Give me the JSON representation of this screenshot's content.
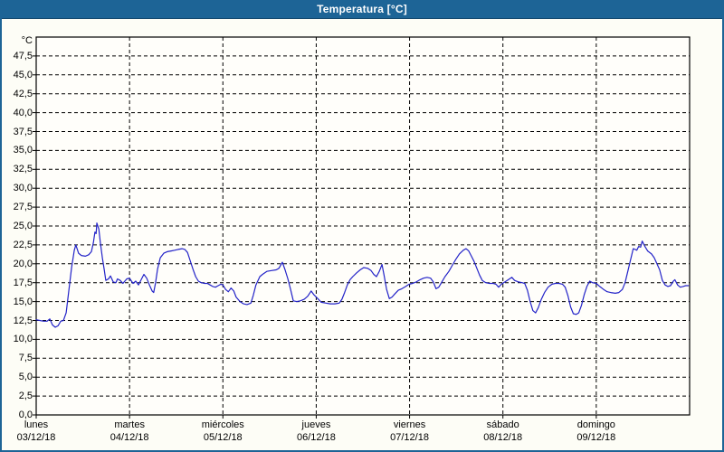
{
  "window": {
    "title": "Temperatura [°C]"
  },
  "colors": {
    "titlebar": "#1d6496",
    "title_text": "#ffffff",
    "page_border": "#1d6496",
    "background": "#fdfdf6",
    "plot_background": "#fffefa",
    "grid": "#000000",
    "axis": "#000000",
    "tick_text": "#000000",
    "line": "#2323c8"
  },
  "chart_data": {
    "type": "line",
    "title": "Temperatura [°C]",
    "ylabel": "°C",
    "xlabel": "",
    "ylim": [
      0,
      50
    ],
    "ytick_step": 2.5,
    "grid": "dashed",
    "legend": "none",
    "x_range_hours": [
      0,
      168
    ],
    "yticks": [
      {
        "value": 47.5,
        "label": "47,5"
      },
      {
        "value": 45.0,
        "label": "45,0"
      },
      {
        "value": 42.5,
        "label": "42,5"
      },
      {
        "value": 40.0,
        "label": "40,0"
      },
      {
        "value": 37.5,
        "label": "37,5"
      },
      {
        "value": 35.0,
        "label": "35,0"
      },
      {
        "value": 32.5,
        "label": "32,5"
      },
      {
        "value": 30.0,
        "label": "30,0"
      },
      {
        "value": 27.5,
        "label": "27,5"
      },
      {
        "value": 25.0,
        "label": "25,0"
      },
      {
        "value": 22.5,
        "label": "22,5"
      },
      {
        "value": 20.0,
        "label": "20,0"
      },
      {
        "value": 17.5,
        "label": "17,5"
      },
      {
        "value": 15.0,
        "label": "15,0"
      },
      {
        "value": 12.5,
        "label": "12,5"
      },
      {
        "value": 10.0,
        "label": "10,0"
      },
      {
        "value": 7.5,
        "label": "7,5"
      },
      {
        "value": 5.0,
        "label": "5,0"
      },
      {
        "value": 2.5,
        "label": "2,5"
      },
      {
        "value": 0.0,
        "label": "0,0"
      }
    ],
    "x_days": [
      {
        "name": "lunes",
        "date": "03/12/18"
      },
      {
        "name": "martes",
        "date": "04/12/18"
      },
      {
        "name": "miércoles",
        "date": "05/12/18"
      },
      {
        "name": "jueves",
        "date": "06/12/18"
      },
      {
        "name": "viernes",
        "date": "07/12/18"
      },
      {
        "name": "sábado",
        "date": "08/12/18"
      },
      {
        "name": "domingo",
        "date": "09/12/18"
      }
    ],
    "series": [
      {
        "name": "Temperatura",
        "color": "#2323c8",
        "points": [
          [
            0,
            12.6
          ],
          [
            0.9,
            12.5
          ],
          [
            1.9,
            12.4
          ],
          [
            2.8,
            12.4
          ],
          [
            3.5,
            12.7
          ],
          [
            4.2,
            11.9
          ],
          [
            4.9,
            11.6
          ],
          [
            5.6,
            11.8
          ],
          [
            6.3,
            12.4
          ],
          [
            7,
            12.5
          ],
          [
            7.7,
            13.5
          ],
          [
            8.4,
            16.5
          ],
          [
            9.1,
            19.5
          ],
          [
            9.8,
            21.8
          ],
          [
            10.2,
            22.5
          ],
          [
            10.9,
            21.4
          ],
          [
            11.6,
            21.1
          ],
          [
            12.6,
            21
          ],
          [
            13.5,
            21.2
          ],
          [
            14.2,
            21.6
          ],
          [
            14.7,
            22.8
          ],
          [
            15.1,
            24.2
          ],
          [
            15.4,
            24
          ],
          [
            15.6,
            25.4
          ],
          [
            16.1,
            24.6
          ],
          [
            16.5,
            22.8
          ],
          [
            17,
            20.8
          ],
          [
            17.5,
            19.2
          ],
          [
            17.9,
            17.8
          ],
          [
            18.6,
            18
          ],
          [
            19.1,
            18.4
          ],
          [
            19.8,
            17.6
          ],
          [
            20.5,
            17.5
          ],
          [
            20.9,
            18
          ],
          [
            21.6,
            17.8
          ],
          [
            22.3,
            17.4
          ],
          [
            23.3,
            18
          ],
          [
            24,
            18.1
          ],
          [
            24.9,
            17.4
          ],
          [
            25.6,
            17.7
          ],
          [
            26.3,
            17.2
          ],
          [
            27,
            17.9
          ],
          [
            27.7,
            18.6
          ],
          [
            28.4,
            18.1
          ],
          [
            29.1,
            17.2
          ],
          [
            29.8,
            16.4
          ],
          [
            30.2,
            16.2
          ],
          [
            30.7,
            17.5
          ],
          [
            31.2,
            19.3
          ],
          [
            31.9,
            20.8
          ],
          [
            32.8,
            21.4
          ],
          [
            33.7,
            21.6
          ],
          [
            34.7,
            21.7
          ],
          [
            35.6,
            21.8
          ],
          [
            36.5,
            21.9
          ],
          [
            37.5,
            22
          ],
          [
            38.2,
            21.9
          ],
          [
            38.9,
            21.5
          ],
          [
            39.6,
            20.4
          ],
          [
            40.3,
            19.3
          ],
          [
            41,
            18.3
          ],
          [
            41.7,
            17.7
          ],
          [
            42.4,
            17.5
          ],
          [
            43.3,
            17.4
          ],
          [
            44,
            17.4
          ],
          [
            44.7,
            17.2
          ],
          [
            45.4,
            17
          ],
          [
            46.1,
            16.9
          ],
          [
            46.8,
            17.1
          ],
          [
            47.5,
            17.3
          ],
          [
            48,
            17.2
          ],
          [
            48.7,
            16.6
          ],
          [
            49.4,
            16.3
          ],
          [
            50.1,
            16.8
          ],
          [
            50.8,
            16.4
          ],
          [
            51.4,
            15.6
          ],
          [
            52.4,
            15
          ],
          [
            53.3,
            14.7
          ],
          [
            54.2,
            14.6
          ],
          [
            55.2,
            14.8
          ],
          [
            55.8,
            15.8
          ],
          [
            56.5,
            17.2
          ],
          [
            57.5,
            18.3
          ],
          [
            58.2,
            18.6
          ],
          [
            59.3,
            19
          ],
          [
            60.5,
            19.1
          ],
          [
            61.7,
            19.2
          ],
          [
            62.4,
            19.4
          ],
          [
            63.3,
            20.2
          ],
          [
            64,
            19.2
          ],
          [
            64.7,
            18
          ],
          [
            65.4,
            16.6
          ],
          [
            66.1,
            15.1
          ],
          [
            67,
            15
          ],
          [
            67.9,
            15.1
          ],
          [
            68.9,
            15.3
          ],
          [
            69.8,
            15.7
          ],
          [
            70.7,
            16.4
          ],
          [
            71.4,
            15.9
          ],
          [
            72.4,
            15.4
          ],
          [
            73.3,
            14.9
          ],
          [
            74.5,
            14.8
          ],
          [
            75.6,
            14.7
          ],
          [
            76.8,
            14.7
          ],
          [
            77.9,
            14.8
          ],
          [
            78.6,
            15.3
          ],
          [
            79.3,
            16.2
          ],
          [
            80,
            17.2
          ],
          [
            80.7,
            17.9
          ],
          [
            81.4,
            18.3
          ],
          [
            82.4,
            18.8
          ],
          [
            83.3,
            19.2
          ],
          [
            84.2,
            19.5
          ],
          [
            85.2,
            19.4
          ],
          [
            86.1,
            19.1
          ],
          [
            86.8,
            18.6
          ],
          [
            87.5,
            18.3
          ],
          [
            88.2,
            19
          ],
          [
            88.9,
            19.9
          ],
          [
            89.4,
            18.6
          ],
          [
            90.1,
            16.6
          ],
          [
            90.8,
            15.4
          ],
          [
            91.5,
            15.6
          ],
          [
            92.2,
            16
          ],
          [
            93.1,
            16.5
          ],
          [
            94,
            16.7
          ],
          [
            95,
            17
          ],
          [
            95.9,
            17.3
          ],
          [
            96.8,
            17.4
          ],
          [
            97.7,
            17.6
          ],
          [
            98.7,
            17.9
          ],
          [
            99.6,
            18.1
          ],
          [
            100.5,
            18.2
          ],
          [
            101.4,
            18.1
          ],
          [
            102.1,
            17.6
          ],
          [
            102.8,
            16.7
          ],
          [
            103.5,
            16.9
          ],
          [
            104.2,
            17.5
          ],
          [
            105.1,
            18.3
          ],
          [
            106.1,
            19
          ],
          [
            107,
            19.8
          ],
          [
            107.9,
            20.6
          ],
          [
            108.8,
            21.3
          ],
          [
            109.8,
            21.8
          ],
          [
            110.5,
            22
          ],
          [
            111.2,
            21.7
          ],
          [
            111.9,
            21
          ],
          [
            112.6,
            20.3
          ],
          [
            113.3,
            19.4
          ],
          [
            114,
            18.5
          ],
          [
            114.7,
            17.8
          ],
          [
            115.6,
            17.5
          ],
          [
            116.5,
            17.4
          ],
          [
            117.5,
            17.4
          ],
          [
            118.2,
            17.3
          ],
          [
            118.9,
            16.9
          ],
          [
            119.6,
            17.3
          ],
          [
            120.5,
            17.6
          ],
          [
            121.4,
            17.9
          ],
          [
            122.3,
            18.2
          ],
          [
            123,
            17.8
          ],
          [
            124,
            17.6
          ],
          [
            124.9,
            17.5
          ],
          [
            125.6,
            17.4
          ],
          [
            126.3,
            16.5
          ],
          [
            127,
            15
          ],
          [
            127.7,
            13.8
          ],
          [
            128.4,
            13.5
          ],
          [
            129.1,
            14.2
          ],
          [
            129.8,
            15.2
          ],
          [
            130.7,
            16.2
          ],
          [
            131.6,
            16.9
          ],
          [
            132.6,
            17.3
          ],
          [
            133.5,
            17.4
          ],
          [
            134.4,
            17.4
          ],
          [
            135.3,
            17.3
          ],
          [
            136,
            16.9
          ],
          [
            136.7,
            15.8
          ],
          [
            137.4,
            14.3
          ],
          [
            138.1,
            13.4
          ],
          [
            138.8,
            13.3
          ],
          [
            139.5,
            13.5
          ],
          [
            140.2,
            14.5
          ],
          [
            140.9,
            15.9
          ],
          [
            141.6,
            17
          ],
          [
            142.3,
            17.7
          ],
          [
            143,
            17.5
          ],
          [
            144,
            17.4
          ],
          [
            144.9,
            17
          ],
          [
            145.9,
            16.6
          ],
          [
            146.8,
            16.3
          ],
          [
            147.7,
            16.2
          ],
          [
            148.9,
            16.1
          ],
          [
            149.8,
            16.2
          ],
          [
            150.7,
            16.6
          ],
          [
            151.4,
            17.5
          ],
          [
            152.1,
            19
          ],
          [
            152.8,
            20.5
          ],
          [
            153.5,
            22
          ],
          [
            154,
            21.9
          ],
          [
            154.4,
            21.8
          ],
          [
            154.9,
            22.3
          ],
          [
            155.4,
            22.2
          ],
          [
            155.8,
            23
          ],
          [
            156.5,
            22.3
          ],
          [
            157.2,
            21.7
          ],
          [
            158.2,
            21.3
          ],
          [
            158.9,
            20.8
          ],
          [
            159.6,
            20
          ],
          [
            160.3,
            19.2
          ],
          [
            161,
            17.8
          ],
          [
            161.7,
            17.2
          ],
          [
            162.4,
            17
          ],
          [
            163.1,
            17.1
          ],
          [
            163.8,
            17.7
          ],
          [
            164.2,
            17.9
          ],
          [
            164.9,
            17.2
          ],
          [
            165.6,
            16.9
          ],
          [
            166.3,
            17
          ],
          [
            167,
            17.1
          ],
          [
            167.7,
            17.1
          ]
        ]
      }
    ]
  }
}
